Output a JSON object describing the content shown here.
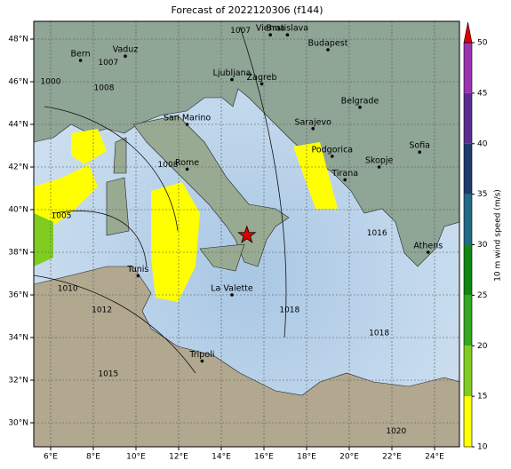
{
  "map": {
    "title": "Forecast of 2022120306 (f144)",
    "xticks": [
      {
        "value": 6,
        "label": "6°E"
      },
      {
        "value": 8,
        "label": "8°E"
      },
      {
        "value": 10,
        "label": "10°E"
      },
      {
        "value": 12,
        "label": "12°E"
      },
      {
        "value": 14,
        "label": "14°E"
      },
      {
        "value": 16,
        "label": "16°E"
      },
      {
        "value": 18,
        "label": "18°E"
      },
      {
        "value": 20,
        "label": "20°E"
      },
      {
        "value": 22,
        "label": "22°E"
      },
      {
        "value": 24,
        "label": "24°E"
      }
    ],
    "yticks": [
      {
        "value": 30,
        "label": "30°N"
      },
      {
        "value": 32,
        "label": "32°N"
      },
      {
        "value": 34,
        "label": "34°N"
      },
      {
        "value": 36,
        "label": "36°N"
      },
      {
        "value": 38,
        "label": "38°N"
      },
      {
        "value": 40,
        "label": "40°N"
      },
      {
        "value": 42,
        "label": "42°N"
      },
      {
        "value": 44,
        "label": "44°N"
      },
      {
        "value": 46,
        "label": "46°N"
      },
      {
        "value": 48,
        "label": "48°N"
      }
    ],
    "cities": [
      {
        "name": "Bern",
        "lon": 7.4,
        "lat": 47.0
      },
      {
        "name": "Vaduz",
        "lon": 9.5,
        "lat": 47.2
      },
      {
        "name": "Vienna",
        "lon": 16.3,
        "lat": 48.2
      },
      {
        "name": "Bratislava",
        "lon": 17.1,
        "lat": 48.2
      },
      {
        "name": "Budapest",
        "lon": 19.0,
        "lat": 47.5
      },
      {
        "name": "Ljubljana",
        "lon": 14.5,
        "lat": 46.1
      },
      {
        "name": "Zagreb",
        "lon": 15.9,
        "lat": 45.9
      },
      {
        "name": "Belgrade",
        "lon": 20.5,
        "lat": 44.8
      },
      {
        "name": "San Marino",
        "lon": 12.4,
        "lat": 44.0
      },
      {
        "name": "Sarajevo",
        "lon": 18.3,
        "lat": 43.8
      },
      {
        "name": "Podgorica",
        "lon": 19.2,
        "lat": 42.5
      },
      {
        "name": "Skopje",
        "lon": 21.4,
        "lat": 42.0
      },
      {
        "name": "Sofia",
        "lon": 23.3,
        "lat": 42.7
      },
      {
        "name": "Rome",
        "lon": 12.4,
        "lat": 41.9
      },
      {
        "name": "Tirana",
        "lon": 19.8,
        "lat": 41.4
      },
      {
        "name": "Athens",
        "lon": 23.7,
        "lat": 38.0
      },
      {
        "name": "Tunis",
        "lon": 10.1,
        "lat": 36.9
      },
      {
        "name": "La Valette",
        "lon": 14.5,
        "lat": 36.0
      },
      {
        "name": "Tripoli",
        "lon": 13.1,
        "lat": 32.9
      }
    ],
    "isobar_labels": [
      {
        "value": 1000,
        "lon": 6.0,
        "lat": 46.0
      },
      {
        "value": 1007,
        "lon": 8.7,
        "lat": 46.9
      },
      {
        "value": 1008,
        "lon": 8.5,
        "lat": 45.7
      },
      {
        "value": 1007,
        "lon": 14.9,
        "lat": 48.4
      },
      {
        "value": 1008,
        "lon": 11.5,
        "lat": 42.1
      },
      {
        "value": 1005,
        "lon": 6.5,
        "lat": 39.7
      },
      {
        "value": 1010,
        "lon": 6.8,
        "lat": 36.3
      },
      {
        "value": 1012,
        "lon": 8.4,
        "lat": 35.3
      },
      {
        "value": 1015,
        "lon": 8.7,
        "lat": 32.3
      },
      {
        "value": 1018,
        "lon": 17.2,
        "lat": 35.3
      },
      {
        "value": 1018,
        "lon": 21.4,
        "lat": 34.2
      },
      {
        "value": 1016,
        "lon": 21.3,
        "lat": 38.9
      },
      {
        "value": 1020,
        "lon": 22.2,
        "lat": 29.6
      }
    ],
    "marker": {
      "lon": 15.2,
      "lat": 38.8,
      "color": "#e00000"
    },
    "colorbar": {
      "label": "10 m wind speed (m/s)",
      "ticks": [
        10,
        15,
        20,
        25,
        30,
        35,
        40,
        45,
        50
      ],
      "colors": [
        "#ffff00",
        "#80cc20",
        "#33aa22",
        "#118811",
        "#226a88",
        "#1c3b6e",
        "#5a2d91",
        "#9b33b3"
      ],
      "extend_color": "#e00000"
    }
  }
}
